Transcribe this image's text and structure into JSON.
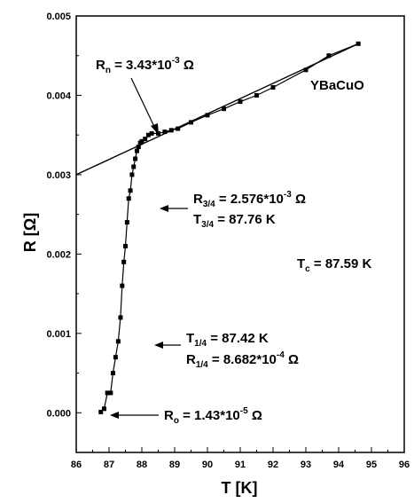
{
  "chart_data": {
    "type": "scatter",
    "xlabel": "T [K]",
    "ylabel": "R [Ω]",
    "xlim": [
      86,
      96
    ],
    "ylim": [
      -0.0005,
      0.005
    ],
    "xticks": [
      86,
      87,
      88,
      89,
      90,
      91,
      92,
      93,
      94,
      95,
      96
    ],
    "xtick_labels": [
      "86",
      "87",
      "88",
      "89",
      "90",
      "91",
      "92",
      "93",
      "94",
      "95",
      "96"
    ],
    "yticks": [
      0.0,
      0.001,
      0.002,
      0.003,
      0.004,
      0.005
    ],
    "ytick_labels": [
      "0.000",
      "0.001",
      "0.002",
      "0.003",
      "0.004",
      "0.005"
    ],
    "grid": false,
    "series": [
      {
        "marker": "square",
        "x": [
          86.75,
          86.85,
          86.95,
          87.05,
          87.12,
          87.2,
          87.28,
          87.35,
          87.4,
          87.45,
          87.5,
          87.55,
          87.6,
          87.65,
          87.7,
          87.75,
          87.8,
          87.85,
          87.9,
          87.95,
          88.0,
          88.1,
          88.2,
          88.3,
          88.5,
          88.7,
          88.9,
          89.1,
          89.5,
          90.0,
          90.5,
          91.0,
          91.5,
          92.0,
          93.0,
          93.7,
          94.6
        ],
        "y": [
          1e-05,
          5e-05,
          0.00025,
          0.00025,
          0.0005,
          0.0007,
          0.0009,
          0.0012,
          0.0016,
          0.0019,
          0.0021,
          0.0024,
          0.0027,
          0.0028,
          0.003,
          0.0031,
          0.0032,
          0.0033,
          0.00335,
          0.0034,
          0.00342,
          0.00345,
          0.0035,
          0.00352,
          0.00352,
          0.00354,
          0.00356,
          0.00358,
          0.00366,
          0.00375,
          0.00383,
          0.00392,
          0.004,
          0.0041,
          0.00432,
          0.0045,
          0.00465
        ]
      }
    ],
    "fit_line": {
      "x": [
        86.0,
        94.6
      ],
      "y": [
        0.003,
        0.00465
      ]
    },
    "annotations": {
      "sample": "YBaCuO",
      "rn_main": "R",
      "rn_sub": "n",
      "rn_rest": " = 3.43*10",
      "rn_exp": "-3",
      "rn_unit": " Ω",
      "r34_main": "R",
      "r34_sub": "3/4",
      "r34_rest": " = 2.576*10",
      "r34_exp": "-3",
      "r34_unit": " Ω",
      "t34_main": "T",
      "t34_sub": "3/4",
      "t34_rest": " = 87.76 K",
      "tc_main": "T",
      "tc_sub": "c",
      "tc_rest": " = 87.59 K",
      "t14_main": "T",
      "t14_sub": "1/4",
      "t14_rest": " = 87.42 K",
      "r14_main": "R",
      "r14_sub": "1/4",
      "r14_rest": " = 8.682*10",
      "r14_exp": "-4",
      "r14_unit": " Ω",
      "ro_main": "R",
      "ro_sub": "o",
      "ro_rest": " = 1.43*10",
      "ro_exp": "-5",
      "ro_unit": " Ω"
    }
  }
}
